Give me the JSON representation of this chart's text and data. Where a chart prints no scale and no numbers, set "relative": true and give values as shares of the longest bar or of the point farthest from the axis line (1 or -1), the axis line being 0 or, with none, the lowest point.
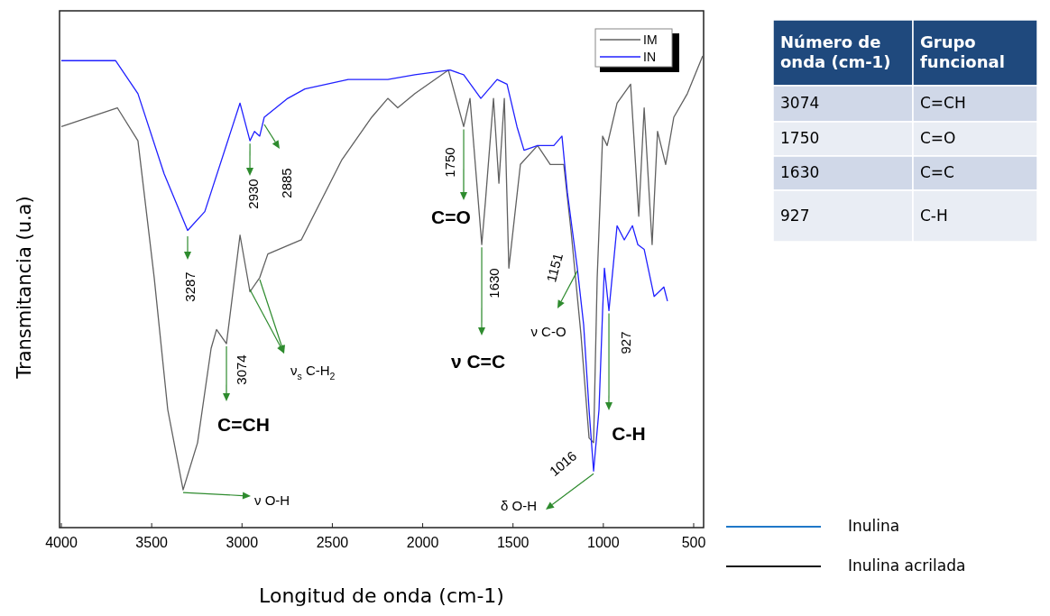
{
  "chart_data": [
    {
      "type": "line",
      "xlabel": "Longitud de onda (cm-1)",
      "ylabel": "Transmitancia (u.a)",
      "relative": true,
      "xlim": [
        4010,
        445
      ],
      "xticks": [
        4000,
        3500,
        3000,
        2500,
        2000,
        1500,
        1000,
        500
      ],
      "legend": "top right",
      "grid": false,
      "tick_labels": "x",
      "series": [
        {
          "name": "IM",
          "color": "#606060",
          "x": [
            4000,
            3690,
            3576,
            3486,
            3411,
            3326,
            3246,
            3171,
            3141,
            3086,
            3011,
            2956,
            2902,
            2857,
            2672,
            2447,
            2282,
            2193,
            2138,
            2043,
            1858,
            1773,
            1738,
            1673,
            1653,
            1608,
            1578,
            1548,
            1523,
            1459,
            1364,
            1294,
            1219,
            1179,
            1124,
            1079,
            1054,
            1034,
            1004,
            979,
            924,
            849,
            804,
            774,
            730,
            700,
            655,
            610,
            535,
            450
          ],
          "values": [
            0.85,
            0.89,
            0.82,
            0.53,
            0.25,
            0.08,
            0.18,
            0.38,
            0.42,
            0.39,
            0.62,
            0.5,
            0.53,
            0.58,
            0.61,
            0.78,
            0.87,
            0.91,
            0.89,
            0.92,
            0.97,
            0.85,
            0.91,
            0.6,
            0.69,
            0.91,
            0.73,
            0.91,
            0.55,
            0.77,
            0.81,
            0.77,
            0.77,
            0.63,
            0.41,
            0.19,
            0.18,
            0.53,
            0.83,
            0.81,
            0.9,
            0.94,
            0.66,
            0.89,
            0.6,
            0.84,
            0.77,
            0.87,
            0.92,
            1.0
          ]
        },
        {
          "name": "IN",
          "color": "#2020ff",
          "x": [
            4000,
            3700,
            3576,
            3431,
            3301,
            3206,
            3011,
            2956,
            2931,
            2902,
            2877,
            2747,
            2652,
            2412,
            2193,
            2043,
            1848,
            1773,
            1678,
            1588,
            1533,
            1478,
            1439,
            1364,
            1274,
            1229,
            1199,
            1144,
            1109,
            1079,
            1054,
            1024,
            1004,
            994,
            969,
            924,
            884,
            839,
            809,
            774,
            719,
            665,
            645
          ],
          "values": [
            0.99,
            0.99,
            0.92,
            0.75,
            0.63,
            0.67,
            0.9,
            0.82,
            0.84,
            0.83,
            0.87,
            0.91,
            0.93,
            0.95,
            0.95,
            0.96,
            0.97,
            0.96,
            0.91,
            0.95,
            0.94,
            0.85,
            0.8,
            0.81,
            0.81,
            0.83,
            0.71,
            0.55,
            0.43,
            0.25,
            0.12,
            0.25,
            0.46,
            0.55,
            0.46,
            0.64,
            0.61,
            0.64,
            0.6,
            0.59,
            0.49,
            0.51,
            0.48
          ]
        }
      ],
      "annotations": [
        "3287",
        {
          "text": "2930",
          "x": 2956,
          "y": 0.82
        },
        "2885",
        "ν$_{s}$ C-H$_{2}$",
        {
          "text": "3074",
          "x": 3086,
          "y": 0.39
        },
        "C=CH",
        {
          "text": "ν O-H",
          "x": 3326,
          "y": 0.08
        },
        {
          "text": "1750",
          "x": 1773,
          "y": 0.85
        },
        "C=O",
        {
          "text": "1630",
          "x": 1673,
          "y": 0.6
        },
        "ν C=C",
        {
          "text": "1151",
          "x": 1144,
          "y": 0.55
        },
        "ν C-O",
        {
          "text": "927",
          "x": 969,
          "y": 0.46
        },
        "C-H",
        {
          "text": "1016",
          "x": 1054,
          "y": 0.12
        },
        "δ O-H",
        "Inulina",
        "Inulina acrilada"
      ]
    },
    {
      "type": "other",
      "annotations": [
        "Número de onda (cm-1)",
        "Grupo funcional",
        "3074",
        "C=CH",
        "1750",
        "C=O",
        "1630",
        "C=C",
        "927",
        "C-H"
      ]
    }
  ]
}
